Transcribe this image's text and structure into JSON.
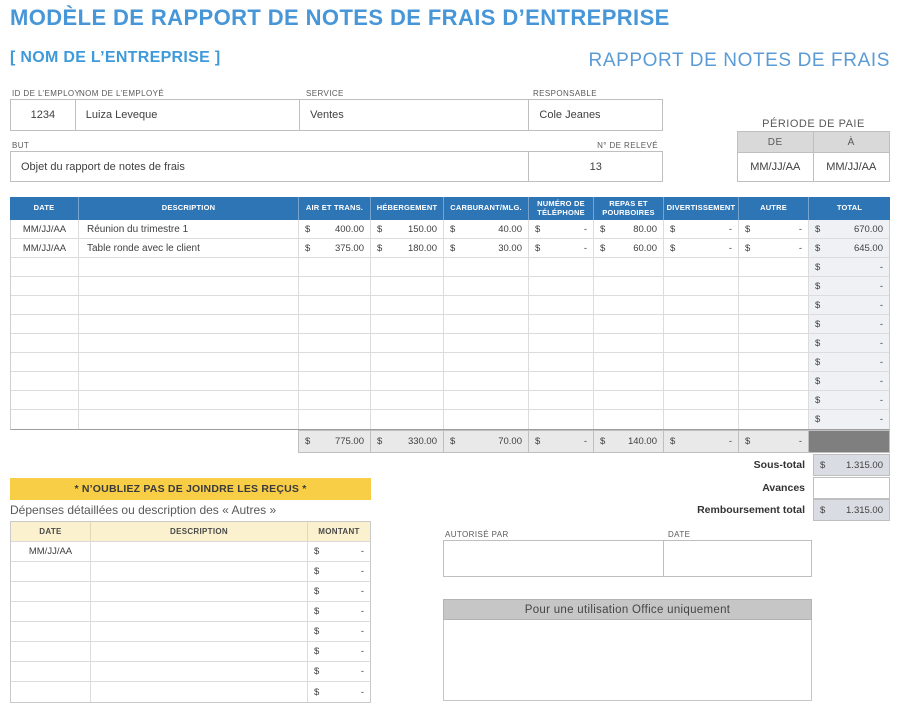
{
  "header": {
    "title": "MODÈLE DE RAPPORT DE NOTES DE FRAIS D’ENTREPRISE",
    "company": "[ NOM DE L’ENTREPRISE ]",
    "report_title": "RAPPORT DE NOTES DE FRAIS"
  },
  "employee": {
    "id_label": "ID DE L’EMPLOY",
    "name_label": "NOM DE L’EMPLOYÉ",
    "service_label": "SERVICE",
    "manager_label": "RESPONSABLE",
    "id": "1234",
    "name": "Luiza Leveque",
    "service": "Ventes",
    "manager": "Cole Jeanes"
  },
  "purpose": {
    "label": "BUT",
    "value": "Objet du rapport de notes de frais",
    "statement_label": "N° DE RELEVÉ",
    "statement_value": "13"
  },
  "pay_period": {
    "title": "PÉRIODE DE PAIE",
    "from_label": "DE",
    "to_label": "À",
    "from_value": "MM/JJ/AA",
    "to_value": "MM/JJ/AA"
  },
  "expense_table": {
    "columns": [
      "DATE",
      "DESCRIPTION",
      "AIR ET TRANS.",
      "HÉBERGEMENT",
      "CARBURANT/MLG.",
      "NUMÉRO DE TÉLÉPHONE",
      "REPAS ET POURBOIRES",
      "DIVERTISSEMENT",
      "AUTRE",
      "TOTAL"
    ],
    "currency": "$",
    "empty_value": "-",
    "rows": [
      {
        "date": "MM/JJ/AA",
        "description": "Réunion du trimestre 1",
        "amounts": [
          "400.00",
          "150.00",
          "40.00",
          "-",
          "80.00",
          "-",
          "-"
        ],
        "total": "670.00"
      },
      {
        "date": "MM/JJ/AA",
        "description": "Table ronde avec le client",
        "amounts": [
          "375.00",
          "180.00",
          "30.00",
          "-",
          "60.00",
          "-",
          "-"
        ],
        "total": "645.00"
      }
    ],
    "empty_row_count": 9,
    "totals": [
      "775.00",
      "330.00",
      "70.00",
      "-",
      "140.00",
      "-",
      "-"
    ]
  },
  "summary": {
    "rows": [
      {
        "label": "Sous-total",
        "value": "1.315.00",
        "filled": true
      },
      {
        "label": "Avances",
        "value": "",
        "filled": false
      },
      {
        "label": "Remboursement total",
        "value": "1.315.00",
        "filled": true
      }
    ]
  },
  "receipts": {
    "banner": "* N’OUBLIEZ PAS DE JOINDRE LES REÇUS *",
    "caption": "Dépenses détaillées ou description des « Autres »"
  },
  "details_table": {
    "headers": [
      "DATE",
      "DESCRIPTION",
      "MONTANT"
    ],
    "first_date": "MM/JJ/AA",
    "row_count": 8
  },
  "authorization": {
    "authorized_label": "AUTORISÉ PAR",
    "date_label": "DATE"
  },
  "office_use": {
    "title": "Pour une utilisation Office uniquement"
  },
  "colors": {
    "title_blue": "#4796d8",
    "report_title_blue": "#5b9bd5",
    "table_header_blue": "#2e75b6",
    "banner_yellow": "#f8ce47",
    "details_header_cream": "#fbf1ce",
    "office_bar_gray": "#c6c6c6",
    "dark_total_cell": "#7f7f7f",
    "summary_fill": "#d9dde3"
  }
}
